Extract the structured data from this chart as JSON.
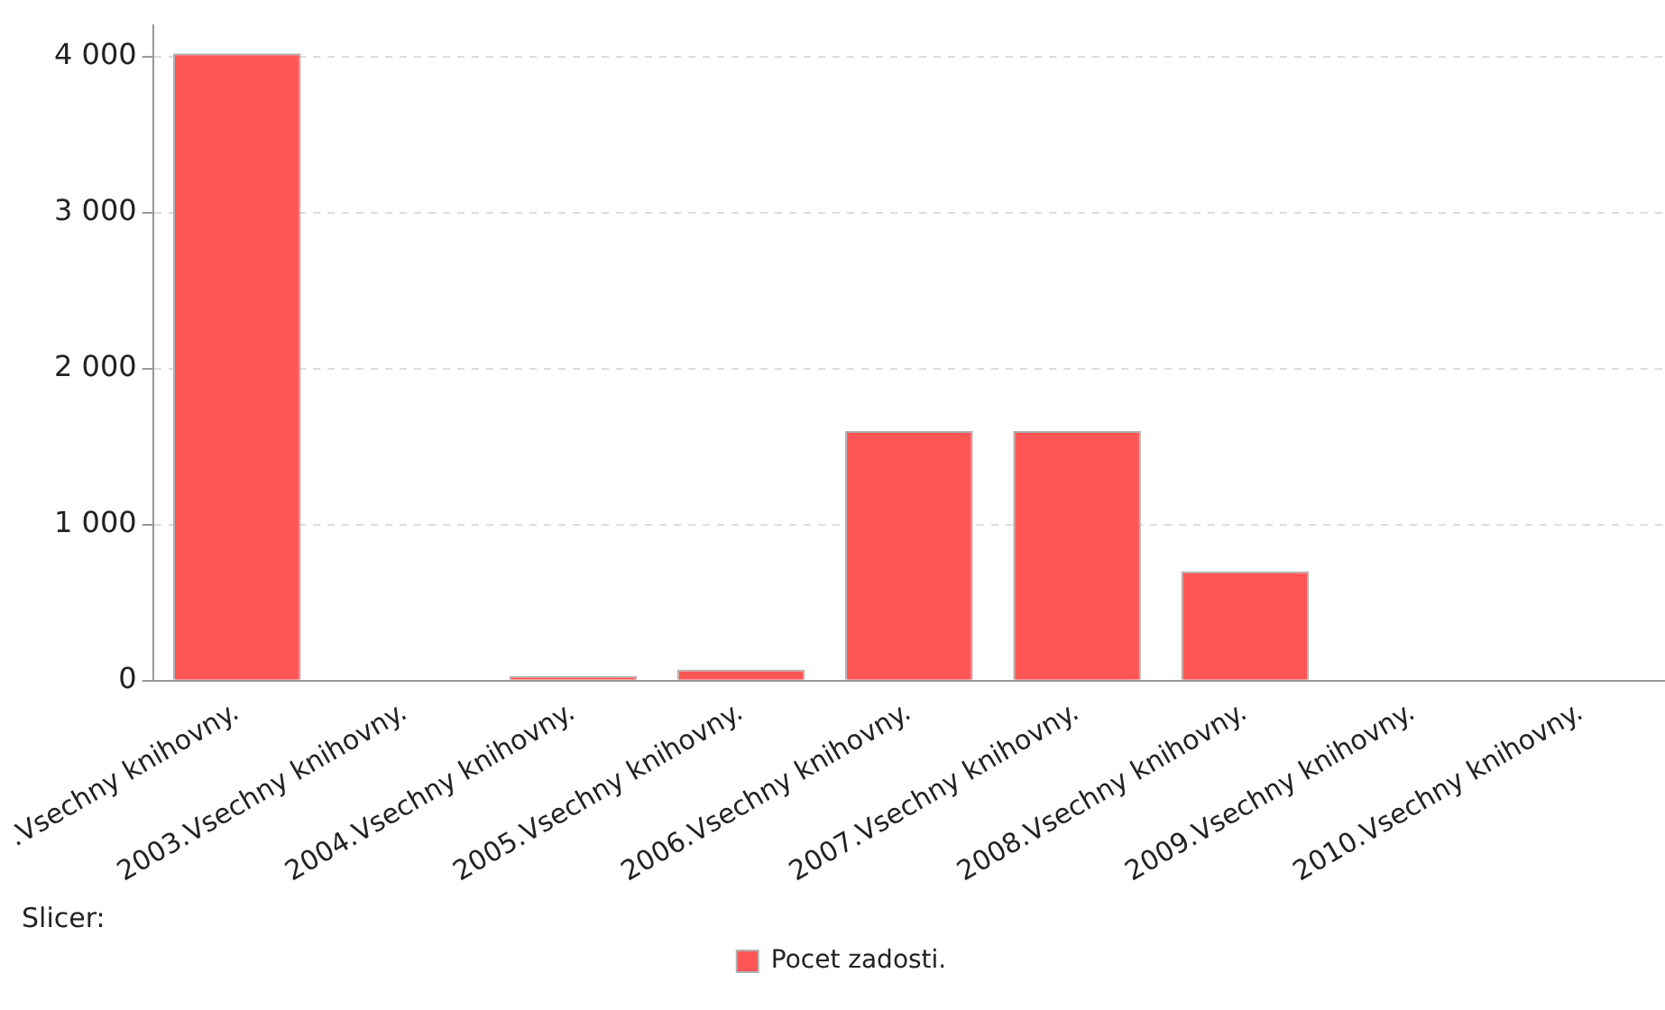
{
  "chart_data": {
    "type": "bar",
    "categories": [
      ".Vsechny knihovny.",
      "2003.Vsechny knihovny.",
      "2004.Vsechny knihovny.",
      "2005.Vsechny knihovny.",
      "2006.Vsechny knihovny.",
      "2007.Vsechny knihovny.",
      "2008.Vsechny knihovny.",
      "2009.Vsechny knihovny.",
      "2010.Vsechny knihovny."
    ],
    "series": [
      {
        "name": "Pocet zadosti.",
        "color": "#ff5555",
        "values": [
          4020,
          0,
          30,
          70,
          1600,
          1600,
          700,
          0,
          0
        ]
      }
    ],
    "ylim": [
      0,
      4200
    ],
    "yticks": [
      {
        "value": 0,
        "label": "0"
      },
      {
        "value": 1000,
        "label": "1 000"
      },
      {
        "value": 2000,
        "label": "2 000"
      },
      {
        "value": 3000,
        "label": "3 000"
      },
      {
        "value": 4000,
        "label": "4 000"
      }
    ],
    "grid": "y",
    "legend": "bottom",
    "annotations": [
      "Slicer:"
    ]
  }
}
